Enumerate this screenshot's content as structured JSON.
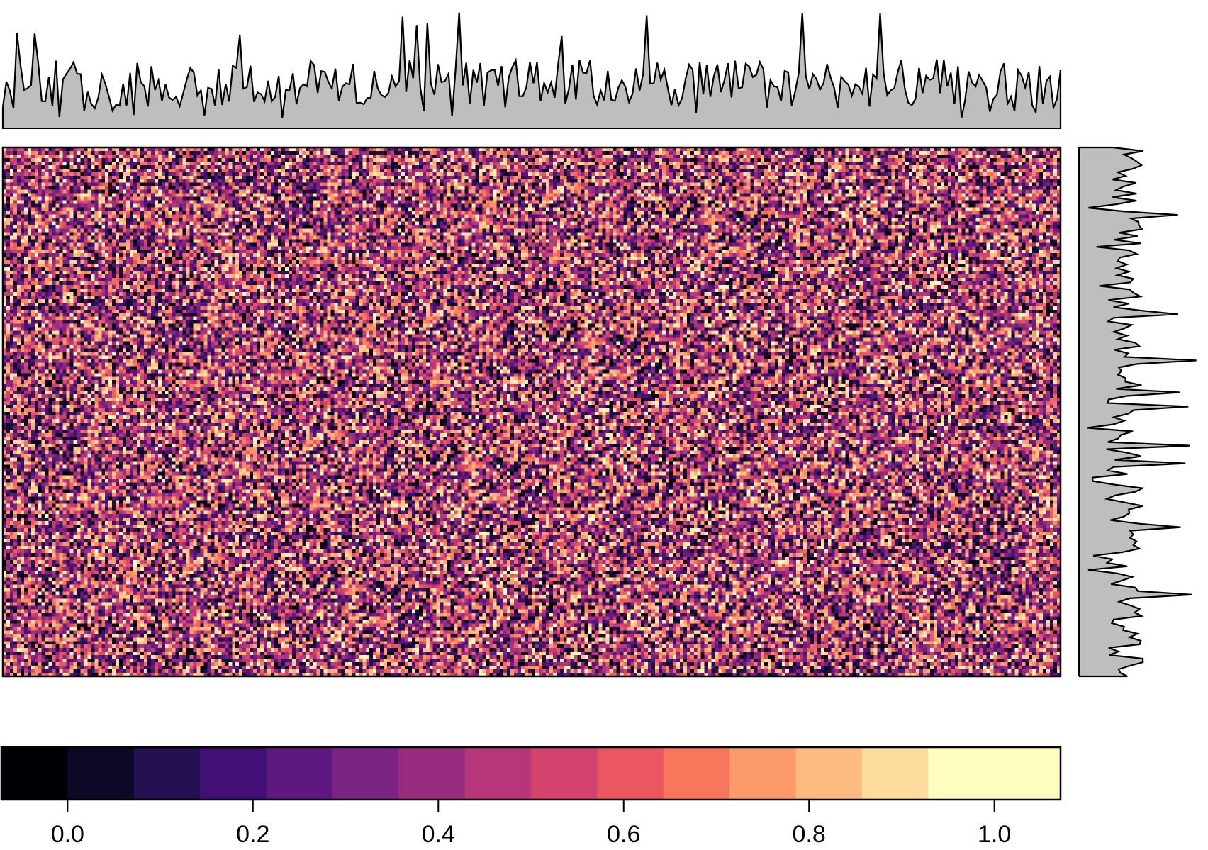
{
  "chart_data": [
    {
      "type": "heatmap",
      "description": "random-noise heatmap of uniform values",
      "rows": 150,
      "cols": 300,
      "zlim": [
        0,
        1
      ],
      "value_distribution": "uniform random in [0, 1]",
      "colormap": "magma",
      "title": "",
      "xlabel": "",
      "ylabel": ""
    },
    {
      "type": "area",
      "role": "top marginal profile (column summary)",
      "points": 300,
      "approx_min": 0.45,
      "approx_max": 0.98,
      "fill_color": "#bebebe",
      "line_color": "#000000"
    },
    {
      "type": "area",
      "role": "right marginal profile (row summary)",
      "points": 150,
      "approx_min": 0.28,
      "approx_max": 0.95,
      "fill_color": "#bebebe",
      "line_color": "#000000"
    },
    {
      "type": "bar",
      "role": "color key",
      "bins": 16,
      "range": [
        -0.0714,
        1.0714
      ],
      "ticks": [
        0.0,
        0.2,
        0.4,
        0.6,
        0.8,
        1.0
      ],
      "tick_labels": [
        "0.0",
        "0.2",
        "0.4",
        "0.6",
        "0.8",
        "1.0"
      ],
      "colors": [
        "#000004",
        "#0c0927",
        "#231151",
        "#410f75",
        "#5f187f",
        "#7b2382",
        "#982d80",
        "#b63679",
        "#d3436e",
        "#eb5760",
        "#f8765c",
        "#fd9a6a",
        "#febb81",
        "#fddc9e",
        "#fcfdbf",
        "#fcfdbf"
      ]
    }
  ]
}
